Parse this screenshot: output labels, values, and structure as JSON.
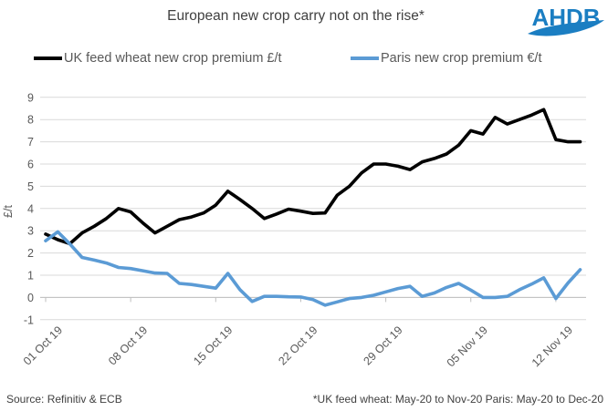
{
  "title": "European new crop carry not on the rise*",
  "logo": {
    "text": "AHDB",
    "color": "#1B7EC2"
  },
  "legend": [
    {
      "label": "UK feed wheat new crop premium £/t",
      "color": "#000000"
    },
    {
      "label": "Paris new crop premium €/t",
      "color": "#5B9BD5"
    }
  ],
  "footer": {
    "source": "Source: Refinitiv & ECB",
    "note": "*UK feed wheat: May-20 to Nov-20 Paris: May-20 to Dec-20"
  },
  "colors": {
    "grid": "#D9D9D9",
    "axis": "#BFBFBF",
    "tick_label": "#595959",
    "title": "#404040"
  },
  "chart_data": {
    "type": "line",
    "title": "European new crop carry not on the rise*",
    "xlabel": "",
    "ylabel": "£/t",
    "ylim": [
      -1,
      9
    ],
    "ytick_step": 1,
    "grid": true,
    "legend_position": "top",
    "x_tick_labels": [
      "01 Oct 19",
      "08 Oct 19",
      "15 Oct 19",
      "22 Oct 19",
      "29 Oct 19",
      "05 Nov 19",
      "12 Nov 19"
    ],
    "x_tick_day_indices": [
      0,
      7,
      14,
      21,
      28,
      35,
      42
    ],
    "x_note": "daily points, 01 Oct 2019 to 14 Nov 2019",
    "series": [
      {
        "name": "UK feed wheat new crop premium £/t",
        "color": "#000000",
        "values": [
          2.85,
          2.6,
          2.42,
          2.9,
          3.2,
          3.55,
          4.0,
          3.85,
          3.35,
          2.9,
          3.2,
          3.5,
          3.62,
          3.8,
          4.15,
          4.78,
          4.4,
          4.0,
          3.55,
          3.75,
          3.97,
          3.88,
          3.78,
          3.8,
          4.6,
          5.0,
          5.6,
          6.0,
          6.0,
          5.9,
          5.75,
          6.1,
          6.25,
          6.45,
          6.85,
          7.5,
          7.35,
          8.1,
          7.8,
          8.0,
          8.2,
          8.45,
          7.1,
          7.0,
          7.0
        ]
      },
      {
        "name": "Paris new crop premium €/t",
        "color": "#5B9BD5",
        "values": [
          2.55,
          2.95,
          2.4,
          1.8,
          1.68,
          1.55,
          1.35,
          1.3,
          1.2,
          1.1,
          1.08,
          0.63,
          0.58,
          0.5,
          0.42,
          1.08,
          0.35,
          -0.18,
          0.05,
          0.05,
          0.03,
          0.02,
          -0.1,
          -0.35,
          -0.2,
          -0.05,
          0.0,
          0.1,
          0.25,
          0.4,
          0.5,
          0.05,
          0.2,
          0.45,
          0.63,
          0.33,
          0.0,
          0.0,
          0.05,
          0.35,
          0.6,
          0.88,
          -0.05,
          0.65,
          1.25
        ]
      }
    ]
  }
}
